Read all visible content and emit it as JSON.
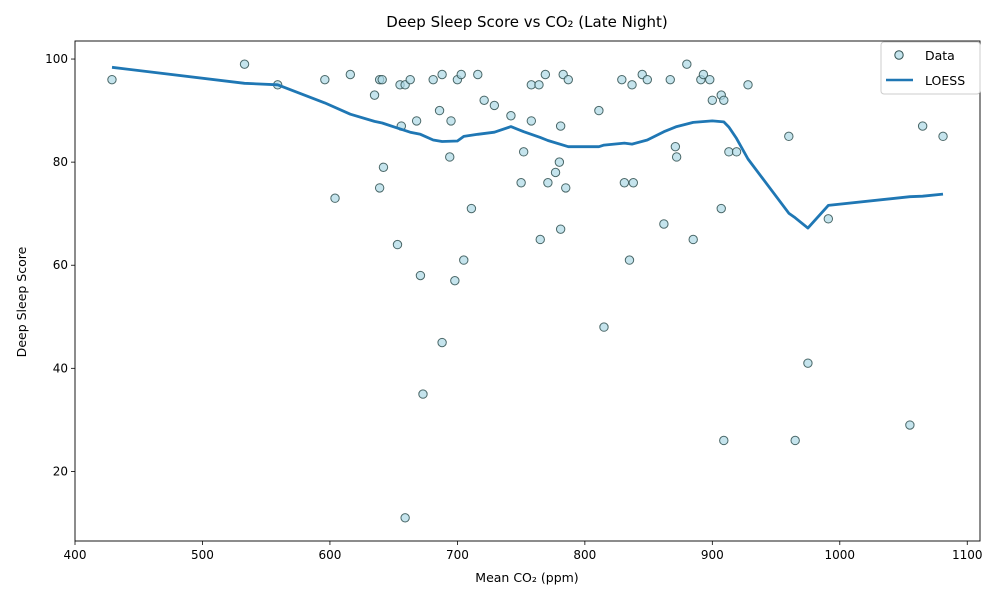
{
  "chart_data": {
    "type": "scatter",
    "title": "Deep Sleep Score vs CO₂ (Late Night)",
    "xlabel": "Mean CO₂ (ppm)",
    "ylabel": "Deep Sleep Score",
    "xlim": [
      400,
      1110
    ],
    "ylim": [
      6.5,
      103.5
    ],
    "xticks": [
      400,
      500,
      600,
      700,
      800,
      900,
      1000,
      1100
    ],
    "yticks": [
      20,
      40,
      60,
      80,
      100
    ],
    "grid": false,
    "legend": {
      "position": "top-right",
      "entries": [
        "Data",
        "LOESS"
      ]
    },
    "series": [
      {
        "name": "Data",
        "kind": "scatter",
        "color": "#add8e6",
        "edge_color": "#2f4f4f",
        "points": [
          [
            429,
            96
          ],
          [
            533,
            99
          ],
          [
            559,
            95
          ],
          [
            596,
            96
          ],
          [
            604,
            73
          ],
          [
            616,
            97
          ],
          [
            635,
            93
          ],
          [
            639,
            96
          ],
          [
            639,
            75
          ],
          [
            641,
            96
          ],
          [
            642,
            79
          ],
          [
            653,
            64
          ],
          [
            655,
            95
          ],
          [
            656,
            87
          ],
          [
            659,
            95
          ],
          [
            659,
            11
          ],
          [
            663,
            96
          ],
          [
            668,
            88
          ],
          [
            671,
            58
          ],
          [
            673,
            35
          ],
          [
            681,
            96
          ],
          [
            686,
            90
          ],
          [
            688,
            97
          ],
          [
            688,
            45
          ],
          [
            694,
            81
          ],
          [
            695,
            88
          ],
          [
            698,
            57
          ],
          [
            700,
            96
          ],
          [
            703,
            97
          ],
          [
            705,
            61
          ],
          [
            711,
            71
          ],
          [
            716,
            97
          ],
          [
            721,
            92
          ],
          [
            729,
            91
          ],
          [
            742,
            89
          ],
          [
            750,
            76
          ],
          [
            752,
            82
          ],
          [
            758,
            88
          ],
          [
            758,
            95
          ],
          [
            764,
            95
          ],
          [
            765,
            65
          ],
          [
            769,
            97
          ],
          [
            771,
            76
          ],
          [
            777,
            78
          ],
          [
            780,
            80
          ],
          [
            781,
            67
          ],
          [
            781,
            87
          ],
          [
            783,
            97
          ],
          [
            785,
            75
          ],
          [
            787,
            96
          ],
          [
            811,
            90
          ],
          [
            815,
            48
          ],
          [
            829,
            96
          ],
          [
            831,
            76
          ],
          [
            835,
            61
          ],
          [
            837,
            95
          ],
          [
            838,
            76
          ],
          [
            845,
            97
          ],
          [
            849,
            96
          ],
          [
            862,
            68
          ],
          [
            867,
            96
          ],
          [
            871,
            83
          ],
          [
            872,
            81
          ],
          [
            880,
            99
          ],
          [
            885,
            65
          ],
          [
            891,
            96
          ],
          [
            893,
            97
          ],
          [
            898,
            96
          ],
          [
            900,
            92
          ],
          [
            907,
            71
          ],
          [
            907,
            93
          ],
          [
            909,
            26
          ],
          [
            909,
            92
          ],
          [
            913,
            82
          ],
          [
            919,
            82
          ],
          [
            928,
            95
          ],
          [
            960,
            85
          ],
          [
            965,
            26
          ],
          [
            975,
            41
          ],
          [
            991,
            69
          ],
          [
            1055,
            29
          ],
          [
            1065,
            87
          ],
          [
            1081,
            85
          ]
        ]
      },
      {
        "name": "LOESS",
        "kind": "line",
        "color": "#1f77b4",
        "points": [
          [
            429,
            98.4
          ],
          [
            533,
            95.3
          ],
          [
            559,
            95.0
          ],
          [
            596,
            91.5
          ],
          [
            616,
            89.3
          ],
          [
            635,
            87.9
          ],
          [
            641,
            87.6
          ],
          [
            653,
            86.6
          ],
          [
            663,
            85.8
          ],
          [
            671,
            85.4
          ],
          [
            681,
            84.3
          ],
          [
            688,
            84.0
          ],
          [
            700,
            84.1
          ],
          [
            705,
            85.0
          ],
          [
            716,
            85.4
          ],
          [
            729,
            85.8
          ],
          [
            742,
            86.9
          ],
          [
            752,
            85.9
          ],
          [
            765,
            84.8
          ],
          [
            771,
            84.2
          ],
          [
            787,
            83.0
          ],
          [
            811,
            83.0
          ],
          [
            815,
            83.3
          ],
          [
            831,
            83.7
          ],
          [
            837,
            83.5
          ],
          [
            849,
            84.3
          ],
          [
            862,
            85.9
          ],
          [
            872,
            86.9
          ],
          [
            885,
            87.7
          ],
          [
            900,
            88.0
          ],
          [
            909,
            87.8
          ],
          [
            913,
            86.8
          ],
          [
            919,
            84.6
          ],
          [
            928,
            80.6
          ],
          [
            960,
            70.1
          ],
          [
            965,
            69.2
          ],
          [
            975,
            67.2
          ],
          [
            991,
            71.6
          ],
          [
            1055,
            73.3
          ],
          [
            1065,
            73.4
          ],
          [
            1081,
            73.8
          ]
        ]
      }
    ]
  }
}
